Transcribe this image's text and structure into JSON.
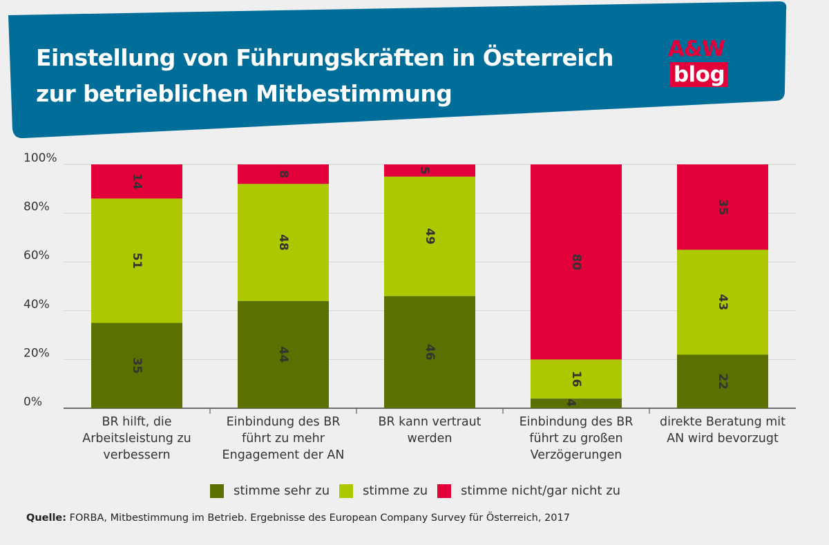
{
  "title_lines": [
    "Einstellung von Führungskräften in Österreich",
    "zur betrieblichen Mitbestimmung"
  ],
  "logo": {
    "top": "A&W",
    "bottom": "blog"
  },
  "colors": {
    "banner": "#006e98",
    "sehr_zu": "#5a7000",
    "zu": "#aec800",
    "nicht": "#e2003b",
    "background": "#efefef"
  },
  "chart_data": {
    "type": "bar",
    "stacked": true,
    "categories": [
      [
        "BR hilft, die",
        "Arbeitsleistung zu",
        "verbessern"
      ],
      [
        "Einbindung des BR",
        "führt zu mehr",
        "Engagement der AN"
      ],
      [
        "BR kann vertraut",
        "werden"
      ],
      [
        "Einbindung des BR",
        "führt zu großen",
        "Verzögerungen"
      ],
      [
        "direkte Beratung mit",
        "AN wird bevorzugt"
      ]
    ],
    "series": [
      {
        "name": "stimme sehr zu",
        "color": "#5a7000",
        "values": [
          35,
          44,
          46,
          4,
          22
        ]
      },
      {
        "name": "stimme zu",
        "color": "#aec800",
        "values": [
          51,
          48,
          49,
          16,
          43
        ]
      },
      {
        "name": "stimme nicht/gar nicht zu",
        "color": "#e2003b",
        "values": [
          14,
          8,
          5,
          80,
          35
        ]
      }
    ],
    "yticks": [
      "0%",
      "20%",
      "40%",
      "60%",
      "80%",
      "100%"
    ],
    "ylim": [
      0,
      100
    ],
    "grid": true,
    "legend_position": "bottom"
  },
  "source": {
    "label": "Quelle:",
    "text": " FORBA, Mitbestimmung im Betrieb. Ergebnisse des European Company Survey für Österreich, 2017"
  }
}
